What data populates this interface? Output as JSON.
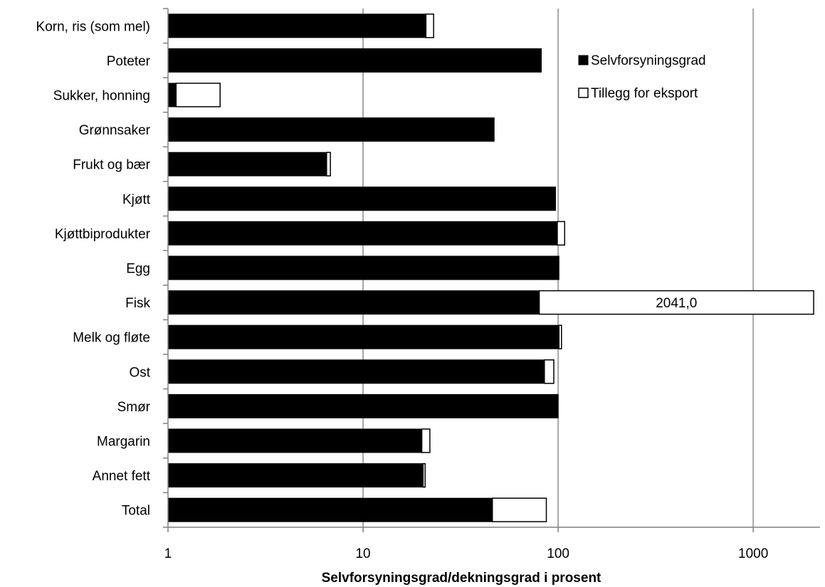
{
  "chart_data": {
    "type": "bar",
    "orientation": "horizontal",
    "stacked": true,
    "x_scale": "log",
    "xlim": [
      1,
      2200
    ],
    "x_ticks": [
      "1",
      "10",
      "100",
      "1000"
    ],
    "grid": "vertical",
    "xlabel": "Selvforsyningsgrad/dekningsgrad i prosent",
    "legend_position": "top-right",
    "colors": {
      "self": "#000000",
      "export": "#ffffff",
      "grid": "#a6a6a6",
      "axis": "#808080"
    },
    "categories": [
      "Korn, ris (som mel)",
      "Poteter",
      "Sukker, honning",
      "Grønnsaker",
      "Frukt og bær",
      "Kjøtt",
      "Kjøttbiprodukter",
      "Egg",
      "Fisk",
      "Melk og fløte",
      "Ost",
      "Smør",
      "Margarin",
      "Annet fett ",
      "Total"
    ],
    "series": [
      {
        "name": "Selvforsyningsgrad",
        "values": [
          21,
          82,
          1.1,
          47,
          6.5,
          97,
          99,
          101,
          80,
          101,
          85,
          100,
          20,
          20.3,
          46
        ]
      },
      {
        "name": "Tillegg for eksport",
        "values": [
          23,
          82,
          1.85,
          47,
          6.8,
          97,
          108,
          101,
          2041,
          104,
          95,
          100,
          22,
          20.8,
          87
        ]
      }
    ],
    "data_labels": [
      {
        "category": "Fisk",
        "text": "2041,0"
      }
    ]
  }
}
